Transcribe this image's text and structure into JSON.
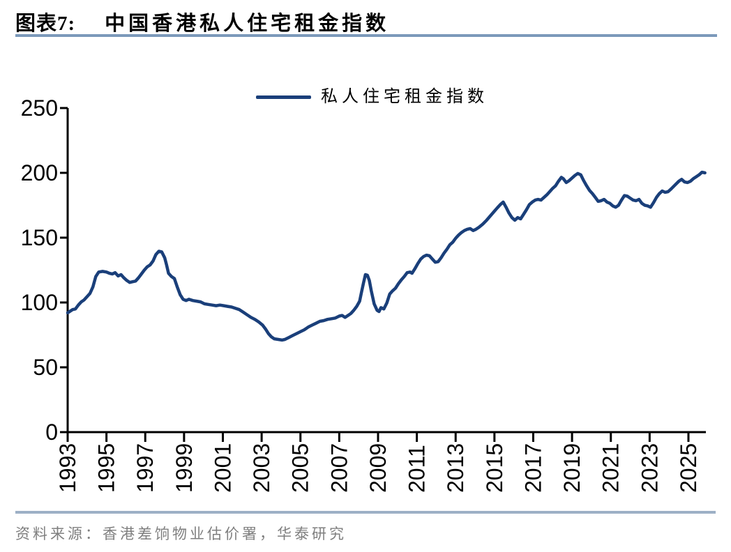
{
  "figure": {
    "label": "图表7:",
    "title": "中国香港私人住宅租金指数",
    "source": "资料来源：香港差饷物业估价署，华泰研究"
  },
  "colors": {
    "line": "#1A3F7A",
    "axis": "#000000",
    "tick_label": "#000000",
    "title_rule": "#7C99BA",
    "footer_rule": "#9DB0C6",
    "source_text": "#7F7F7F"
  },
  "chart_data": {
    "type": "line",
    "title": "中国香港私人住宅租金指数",
    "legend": [
      "私人住宅租金指数"
    ],
    "legend_position": "top-center",
    "xlabel": "",
    "ylabel": "",
    "grid": false,
    "ylim": [
      0,
      250
    ],
    "yticks": [
      0,
      50,
      100,
      150,
      200,
      250
    ],
    "xlim": [
      1993,
      2025.9
    ],
    "xticks": [
      1993,
      1995,
      1997,
      1999,
      2001,
      2003,
      2005,
      2007,
      2009,
      2011,
      2013,
      2015,
      2017,
      2019,
      2021,
      2023,
      2025
    ],
    "series": [
      {
        "name": "私人住宅租金指数",
        "points": [
          [
            1993.0,
            92
          ],
          [
            1993.1,
            93
          ],
          [
            1993.25,
            94.5
          ],
          [
            1993.4,
            95
          ],
          [
            1993.55,
            98
          ],
          [
            1993.7,
            100.5
          ],
          [
            1993.85,
            102
          ],
          [
            1994.0,
            104.5
          ],
          [
            1994.15,
            107
          ],
          [
            1994.3,
            112
          ],
          [
            1994.45,
            120
          ],
          [
            1994.6,
            123.5
          ],
          [
            1994.8,
            124
          ],
          [
            1995.0,
            123.5
          ],
          [
            1995.15,
            122.5
          ],
          [
            1995.3,
            122
          ],
          [
            1995.45,
            123
          ],
          [
            1995.6,
            120.5
          ],
          [
            1995.75,
            121.5
          ],
          [
            1995.9,
            119
          ],
          [
            1996.05,
            117
          ],
          [
            1996.2,
            115.5
          ],
          [
            1996.35,
            116
          ],
          [
            1996.5,
            116.5
          ],
          [
            1996.65,
            119
          ],
          [
            1996.8,
            122
          ],
          [
            1996.95,
            125
          ],
          [
            1997.1,
            127.5
          ],
          [
            1997.25,
            129
          ],
          [
            1997.4,
            132
          ],
          [
            1997.55,
            137
          ],
          [
            1997.7,
            139.5
          ],
          [
            1997.85,
            139
          ],
          [
            1998.0,
            134.5
          ],
          [
            1998.1,
            129
          ],
          [
            1998.2,
            122.5
          ],
          [
            1998.35,
            120
          ],
          [
            1998.5,
            118.5
          ],
          [
            1998.65,
            112
          ],
          [
            1998.8,
            106
          ],
          [
            1998.95,
            102.5
          ],
          [
            1999.1,
            101.5
          ],
          [
            1999.25,
            102.5
          ],
          [
            1999.45,
            101.5
          ],
          [
            1999.65,
            101
          ],
          [
            1999.85,
            100.5
          ],
          [
            2000.05,
            99
          ],
          [
            2000.25,
            98.5
          ],
          [
            2000.45,
            98
          ],
          [
            2000.65,
            97.5
          ],
          [
            2000.85,
            98
          ],
          [
            2001.05,
            97.5
          ],
          [
            2001.25,
            97
          ],
          [
            2001.45,
            96.5
          ],
          [
            2001.65,
            95.5
          ],
          [
            2001.85,
            94.5
          ],
          [
            2002.05,
            92.5
          ],
          [
            2002.25,
            90.5
          ],
          [
            2002.45,
            88.5
          ],
          [
            2002.65,
            87
          ],
          [
            2002.85,
            85
          ],
          [
            2003.05,
            82.5
          ],
          [
            2003.2,
            79.5
          ],
          [
            2003.35,
            76
          ],
          [
            2003.5,
            73.5
          ],
          [
            2003.65,
            72
          ],
          [
            2003.85,
            71.5
          ],
          [
            2004.05,
            71
          ],
          [
            2004.2,
            71.5
          ],
          [
            2004.4,
            73
          ],
          [
            2004.6,
            74.5
          ],
          [
            2004.8,
            76
          ],
          [
            2005.0,
            77.5
          ],
          [
            2005.2,
            79
          ],
          [
            2005.4,
            81
          ],
          [
            2005.6,
            82.5
          ],
          [
            2005.8,
            84
          ],
          [
            2006.0,
            85.5
          ],
          [
            2006.2,
            86
          ],
          [
            2006.4,
            87
          ],
          [
            2006.6,
            87.5
          ],
          [
            2006.8,
            88
          ],
          [
            2007.0,
            89.5
          ],
          [
            2007.15,
            90
          ],
          [
            2007.3,
            88.5
          ],
          [
            2007.45,
            90
          ],
          [
            2007.6,
            91.5
          ],
          [
            2007.75,
            94
          ],
          [
            2007.9,
            97
          ],
          [
            2008.05,
            101
          ],
          [
            2008.15,
            108
          ],
          [
            2008.25,
            115
          ],
          [
            2008.35,
            121.5
          ],
          [
            2008.45,
            121
          ],
          [
            2008.55,
            117
          ],
          [
            2008.65,
            109
          ],
          [
            2008.8,
            99
          ],
          [
            2008.95,
            94
          ],
          [
            2009.05,
            93
          ],
          [
            2009.15,
            96
          ],
          [
            2009.3,
            95
          ],
          [
            2009.45,
            99.5
          ],
          [
            2009.6,
            106.5
          ],
          [
            2009.75,
            109
          ],
          [
            2009.9,
            111
          ],
          [
            2010.05,
            114.5
          ],
          [
            2010.2,
            117.5
          ],
          [
            2010.35,
            120
          ],
          [
            2010.5,
            123
          ],
          [
            2010.65,
            123.5
          ],
          [
            2010.75,
            122.5
          ],
          [
            2010.9,
            126
          ],
          [
            2011.05,
            130
          ],
          [
            2011.2,
            133.5
          ],
          [
            2011.35,
            135.5
          ],
          [
            2011.5,
            136.5
          ],
          [
            2011.65,
            136
          ],
          [
            2011.8,
            133.5
          ],
          [
            2011.95,
            131
          ],
          [
            2012.1,
            131.5
          ],
          [
            2012.25,
            134.5
          ],
          [
            2012.4,
            138
          ],
          [
            2012.55,
            141
          ],
          [
            2012.7,
            144.5
          ],
          [
            2012.85,
            146.5
          ],
          [
            2013.0,
            149.5
          ],
          [
            2013.15,
            152
          ],
          [
            2013.3,
            154
          ],
          [
            2013.45,
            155.5
          ],
          [
            2013.6,
            156.5
          ],
          [
            2013.75,
            157
          ],
          [
            2013.9,
            155.5
          ],
          [
            2014.05,
            156.5
          ],
          [
            2014.2,
            158
          ],
          [
            2014.4,
            160.5
          ],
          [
            2014.6,
            163.5
          ],
          [
            2014.8,
            167
          ],
          [
            2015.0,
            170.5
          ],
          [
            2015.15,
            173
          ],
          [
            2015.3,
            175.5
          ],
          [
            2015.45,
            177.5
          ],
          [
            2015.6,
            173.5
          ],
          [
            2015.75,
            169
          ],
          [
            2015.9,
            165.5
          ],
          [
            2016.05,
            163.5
          ],
          [
            2016.2,
            165.5
          ],
          [
            2016.35,
            164.5
          ],
          [
            2016.5,
            168
          ],
          [
            2016.65,
            171.5
          ],
          [
            2016.8,
            175.5
          ],
          [
            2016.95,
            177.5
          ],
          [
            2017.1,
            179
          ],
          [
            2017.25,
            179.5
          ],
          [
            2017.4,
            179
          ],
          [
            2017.55,
            181
          ],
          [
            2017.7,
            183
          ],
          [
            2017.85,
            185.5
          ],
          [
            2018.0,
            188
          ],
          [
            2018.15,
            190
          ],
          [
            2018.3,
            193.5
          ],
          [
            2018.45,
            196.5
          ],
          [
            2018.55,
            195.5
          ],
          [
            2018.7,
            192.5
          ],
          [
            2018.85,
            194
          ],
          [
            2019.0,
            196
          ],
          [
            2019.15,
            198
          ],
          [
            2019.3,
            199.5
          ],
          [
            2019.45,
            198.5
          ],
          [
            2019.6,
            194
          ],
          [
            2019.75,
            190
          ],
          [
            2019.9,
            186.5
          ],
          [
            2020.05,
            184
          ],
          [
            2020.2,
            181
          ],
          [
            2020.35,
            178
          ],
          [
            2020.5,
            178.5
          ],
          [
            2020.65,
            179.5
          ],
          [
            2020.8,
            177.5
          ],
          [
            2020.95,
            176.5
          ],
          [
            2021.1,
            174.5
          ],
          [
            2021.25,
            173.5
          ],
          [
            2021.4,
            175
          ],
          [
            2021.55,
            179
          ],
          [
            2021.7,
            182.5
          ],
          [
            2021.85,
            182
          ],
          [
            2022.0,
            180.5
          ],
          [
            2022.15,
            179
          ],
          [
            2022.3,
            178.5
          ],
          [
            2022.45,
            179.5
          ],
          [
            2022.6,
            176.5
          ],
          [
            2022.75,
            175
          ],
          [
            2022.9,
            174.5
          ],
          [
            2023.05,
            173.5
          ],
          [
            2023.2,
            177
          ],
          [
            2023.35,
            181
          ],
          [
            2023.5,
            184
          ],
          [
            2023.65,
            186
          ],
          [
            2023.8,
            185
          ],
          [
            2023.95,
            185.5
          ],
          [
            2024.1,
            187.5
          ],
          [
            2024.3,
            190.5
          ],
          [
            2024.5,
            193.5
          ],
          [
            2024.65,
            195
          ],
          [
            2024.8,
            193
          ],
          [
            2024.95,
            192.5
          ],
          [
            2025.1,
            193.5
          ],
          [
            2025.25,
            195.5
          ],
          [
            2025.4,
            197
          ],
          [
            2025.55,
            198.5
          ],
          [
            2025.7,
            200.5
          ],
          [
            2025.85,
            200
          ]
        ]
      }
    ]
  }
}
